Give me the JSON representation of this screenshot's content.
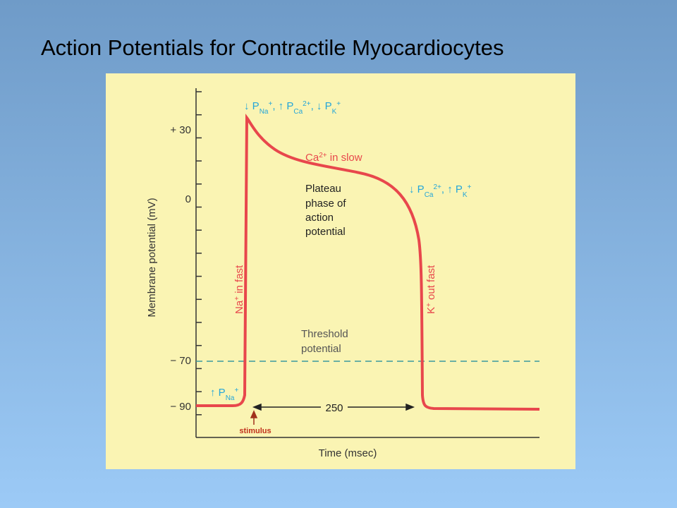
{
  "title": "Action Potentials for Contractile Myocardiocytes",
  "y_axis": {
    "label": "Membrane potential (mV)",
    "ticks": [
      "+ 30",
      "0",
      "− 70",
      "− 90"
    ]
  },
  "x_axis": {
    "label": "Time (msec)"
  },
  "annotations": {
    "top_permeability": [
      {
        "arrow": "↓",
        "p": "P",
        "sub": "Na",
        "sup": "+",
        "sep": ","
      },
      {
        "arrow": "↑",
        "p": "P",
        "sub": "Ca",
        "sup": "2+",
        "sep": ","
      },
      {
        "arrow": "↓",
        "p": "P",
        "sub": "K",
        "sup": "+"
      }
    ],
    "right_permeability": [
      {
        "arrow": "↓",
        "p": "P",
        "sub": "Ca",
        "sup": "2+",
        "sep": ","
      },
      {
        "arrow": "↑",
        "p": "P",
        "sub": "K",
        "sup": "+"
      }
    ],
    "resting_permeability": {
      "arrow": "↑",
      "p": "P",
      "sub": "Na",
      "sup": "+"
    },
    "calcium": {
      "ion": "Ca",
      "charge": "2+",
      "text": " in slow"
    },
    "sodium": {
      "ion": "Na",
      "charge": "+",
      "text": " in fast"
    },
    "potassium": {
      "ion": "K",
      "charge": "+",
      "text": " out fast"
    },
    "plateau": [
      "Plateau",
      "phase of",
      "action",
      "potential"
    ],
    "threshold": [
      "Threshold",
      "potential"
    ],
    "duration": "250",
    "stimulus": "stimulus"
  }
}
